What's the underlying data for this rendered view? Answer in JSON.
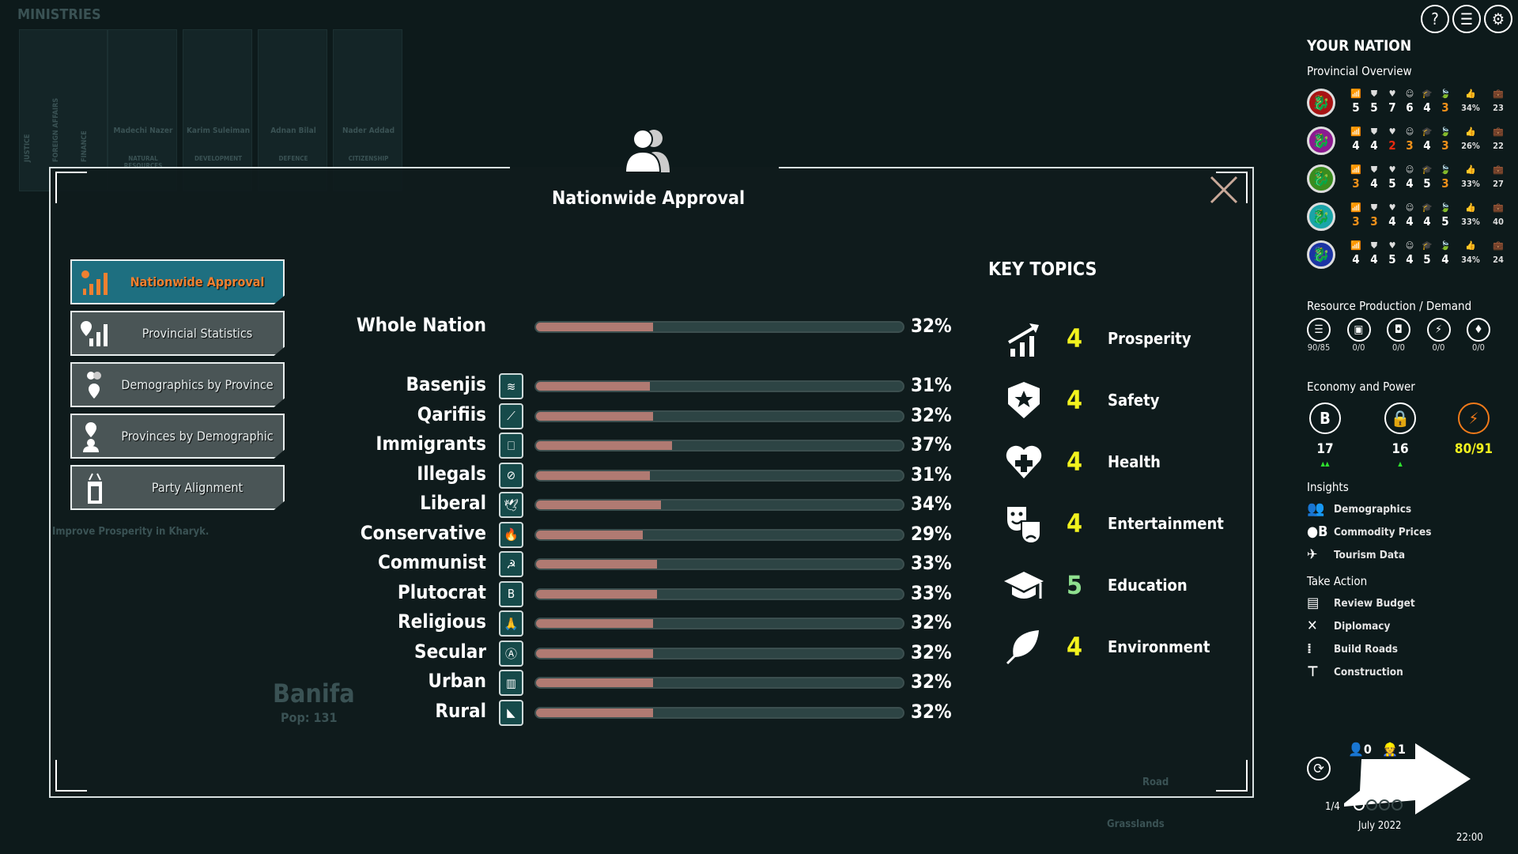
{
  "background": {
    "ministries_label": "MINISTRIES",
    "ministries": [
      {
        "name": "Madechi Nazer",
        "role": "NATURAL RESOURCES"
      },
      {
        "name": "Karim Suleiman",
        "role": "DEVELOPMENT"
      },
      {
        "name": "Adnan Bilal",
        "role": "DEFENCE"
      },
      {
        "name": "Nader Addad",
        "role": "CITIZENSHIP"
      }
    ],
    "vertical_ministries": [
      "JUSTICE",
      "FOREIGN AFFAIRS",
      "FINANCE"
    ],
    "objective": "Improve Prosperity in Kharyk.",
    "city_name": "Banifa",
    "city_pop": "Pop: 131",
    "tile_road": "Road",
    "tile_terrain": "Grasslands"
  },
  "modal": {
    "title": "Nationwide Approval",
    "header_icon": "people-icon",
    "close_icon": "close-icon",
    "nav": [
      {
        "label": "Nationwide Approval",
        "icon": "approval-chart-icon",
        "active": true
      },
      {
        "label": "Provincial Statistics",
        "icon": "pin-chart-icon",
        "active": false
      },
      {
        "label": "Demographics by Province",
        "icon": "people-pin-icon",
        "active": false
      },
      {
        "label": "Provinces by Demographic",
        "icon": "pin-people-icon",
        "active": false
      },
      {
        "label": "Party Alignment",
        "icon": "podium-icon",
        "active": false
      }
    ],
    "whole_nation": {
      "label": "Whole Nation",
      "value": 32,
      "display": "32%"
    },
    "groups": [
      {
        "label": "Basenjis",
        "icon": "waves-icon",
        "value": 31,
        "display": "31%"
      },
      {
        "label": "Qarifiis",
        "icon": "bird-icon",
        "value": 32,
        "display": "32%"
      },
      {
        "label": "Immigrants",
        "icon": "passport-icon",
        "value": 37,
        "display": "37%"
      },
      {
        "label": "Illegals",
        "icon": "crossed-passport-icon",
        "value": 31,
        "display": "31%"
      },
      {
        "label": "Liberal",
        "icon": "dove-icon",
        "value": 34,
        "display": "34%"
      },
      {
        "label": "Conservative",
        "icon": "torch-icon",
        "value": 29,
        "display": "29%"
      },
      {
        "label": "Communist",
        "icon": "hammer-sickle-icon",
        "value": 33,
        "display": "33%"
      },
      {
        "label": "Plutocrat",
        "icon": "coin-icon",
        "value": 33,
        "display": "33%"
      },
      {
        "label": "Religious",
        "icon": "praying-hands-icon",
        "value": 32,
        "display": "32%"
      },
      {
        "label": "Secular",
        "icon": "secular-symbol-icon",
        "value": 32,
        "display": "32%"
      },
      {
        "label": "Urban",
        "icon": "city-icon",
        "value": 32,
        "display": "32%"
      },
      {
        "label": "Rural",
        "icon": "countryside-icon",
        "value": 32,
        "display": "32%"
      }
    ],
    "key_topics_title": "KEY TOPICS",
    "key_topics": [
      {
        "label": "Prosperity",
        "value": "4",
        "icon": "growth-chart-icon",
        "color": "#f2f21e"
      },
      {
        "label": "Safety",
        "value": "4",
        "icon": "shield-star-icon",
        "color": "#f2f21e"
      },
      {
        "label": "Health",
        "value": "4",
        "icon": "heart-plus-icon",
        "color": "#f2f21e"
      },
      {
        "label": "Entertainment",
        "value": "4",
        "icon": "theater-masks-icon",
        "color": "#f2f21e"
      },
      {
        "label": "Education",
        "value": "5",
        "icon": "graduation-cap-icon",
        "color": "#8fe08f"
      },
      {
        "label": "Environment",
        "value": "4",
        "icon": "leaf-icon",
        "color": "#f2f21e"
      }
    ]
  },
  "top_buttons": [
    {
      "label": "?",
      "icon": "help-icon"
    },
    {
      "label": "☰",
      "icon": "menu-icon"
    },
    {
      "label": "⚙",
      "icon": "settings-icon"
    }
  ],
  "nation": {
    "title": "YOUR NATION",
    "provincial_overview": "Provincial Overview",
    "stat_icons": [
      "prosperity-icon",
      "safety-icon",
      "health-icon",
      "entertainment-icon",
      "education-icon",
      "environment-icon",
      "approval-icon",
      "jobs-icon"
    ],
    "provinces": [
      {
        "color": "#a81414",
        "stats": [
          "5",
          "5",
          "7",
          "6",
          "4",
          "3"
        ],
        "stat_colors": [
          "#fff",
          "#fff",
          "#fff",
          "#fff",
          "#fff",
          "#f0901a"
        ],
        "approval": "34%",
        "jobs": "23"
      },
      {
        "color": "#8c1a90",
        "stats": [
          "4",
          "4",
          "2",
          "3",
          "4",
          "3"
        ],
        "stat_colors": [
          "#fff",
          "#fff",
          "#e82a10",
          "#f0901a",
          "#fff",
          "#f0901a"
        ],
        "approval": "26%",
        "jobs": "22"
      },
      {
        "color": "#3a8c1e",
        "stats": [
          "3",
          "4",
          "5",
          "4",
          "5",
          "3"
        ],
        "stat_colors": [
          "#f0901a",
          "#fff",
          "#fff",
          "#fff",
          "#fff",
          "#f0901a"
        ],
        "approval": "33%",
        "jobs": "27"
      },
      {
        "color": "#1aa4a8",
        "stats": [
          "3",
          "3",
          "4",
          "4",
          "4",
          "5"
        ],
        "stat_colors": [
          "#f0901a",
          "#f0901a",
          "#fff",
          "#fff",
          "#fff",
          "#fff"
        ],
        "approval": "33%",
        "jobs": "40"
      },
      {
        "color": "#1c34a4",
        "stats": [
          "4",
          "4",
          "5",
          "4",
          "5",
          "4"
        ],
        "stat_colors": [
          "#fff",
          "#fff",
          "#fff",
          "#fff",
          "#fff",
          "#fff"
        ],
        "approval": "34%",
        "jobs": "24"
      }
    ],
    "resource_title": "Resource Production / Demand",
    "resources": [
      {
        "icon": "food-icon",
        "glyph": "☰",
        "value": "90/85"
      },
      {
        "icon": "electronics-icon",
        "glyph": "▣",
        "value": "0/0"
      },
      {
        "icon": "goods-icon",
        "glyph": "◘",
        "value": "0/0"
      },
      {
        "icon": "power-plug-icon",
        "glyph": "⚡",
        "value": "0/0"
      },
      {
        "icon": "gem-icon",
        "glyph": "♦",
        "value": "0/0"
      }
    ],
    "economy_title": "Economy and Power",
    "economy": [
      {
        "icon": "currency-icon",
        "glyph": "B",
        "value": "17",
        "trend": "▲▲",
        "color": "#ffffff"
      },
      {
        "icon": "secret-folder-icon",
        "glyph": "🔒",
        "value": "16",
        "trend": "▲",
        "color": "#ffffff"
      },
      {
        "icon": "power-icon",
        "glyph": "⚡",
        "value": "80/91",
        "trend": "",
        "color": "#f2f21e"
      }
    ],
    "insights_title": "Insights",
    "insights": [
      {
        "label": "Demographics",
        "icon": "people-icon",
        "glyph": "👥"
      },
      {
        "label": "Commodity Prices",
        "icon": "commodity-icon",
        "glyph": "●B"
      },
      {
        "label": "Tourism Data",
        "icon": "plane-ticket-icon",
        "glyph": "✈"
      }
    ],
    "action_title": "Take Action",
    "actions": [
      {
        "label": "Review Budget",
        "icon": "budget-icon",
        "glyph": "▤"
      },
      {
        "label": "Diplomacy",
        "icon": "flags-icon",
        "glyph": "✕"
      },
      {
        "label": "Build Roads",
        "icon": "road-icon",
        "glyph": "⁞"
      },
      {
        "label": "Construction",
        "icon": "crane-icon",
        "glyph": "⊤"
      }
    ]
  },
  "turn": {
    "advisors": "0",
    "workers": "1",
    "phase": "1/4",
    "date": "July 2022",
    "time": "22:00",
    "timers_used": 1,
    "timers_total": 4
  }
}
